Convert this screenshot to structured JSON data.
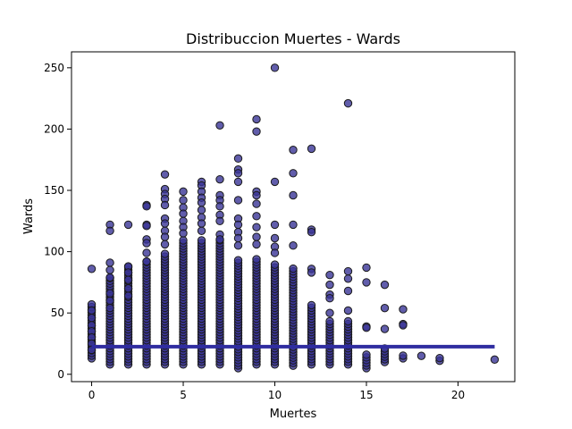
{
  "chart_data": {
    "type": "scatter",
    "title": "Distribuccion Muertes - Wards",
    "xlabel": "Muertes",
    "ylabel": "Wards",
    "xlim": [
      -1.1,
      23.1
    ],
    "ylim": [
      -6,
      263
    ],
    "xticks": [
      0,
      5,
      10,
      15,
      20
    ],
    "yticks": [
      0,
      50,
      100,
      150,
      200,
      250
    ],
    "grid": false,
    "colors": {
      "point": "#3a3596",
      "edge": "#1a1a1a",
      "trend": "#2f2ca0"
    },
    "trend_line": {
      "x": [
        0,
        22
      ],
      "y": [
        22.5,
        22.5
      ]
    },
    "column_ranges": [
      {
        "x": 0,
        "y_min": 13,
        "y_max": 59
      },
      {
        "x": 1,
        "y_min": 8,
        "y_max": 79
      },
      {
        "x": 2,
        "y_min": 8,
        "y_max": 88
      },
      {
        "x": 3,
        "y_min": 8,
        "y_max": 92
      },
      {
        "x": 4,
        "y_min": 8,
        "y_max": 100
      },
      {
        "x": 5,
        "y_min": 8,
        "y_max": 110
      },
      {
        "x": 6,
        "y_min": 8,
        "y_max": 110
      },
      {
        "x": 7,
        "y_min": 8,
        "y_max": 110
      },
      {
        "x": 8,
        "y_min": 5,
        "y_max": 95
      },
      {
        "x": 9,
        "y_min": 8,
        "y_max": 95
      },
      {
        "x": 10,
        "y_min": 8,
        "y_max": 90
      },
      {
        "x": 11,
        "y_min": 7,
        "y_max": 88
      },
      {
        "x": 12,
        "y_min": 8,
        "y_max": 58
      },
      {
        "x": 13,
        "y_min": 8,
        "y_max": 45
      },
      {
        "x": 14,
        "y_min": 8,
        "y_max": 45
      },
      {
        "x": 15,
        "y_min": 5,
        "y_max": 18
      },
      {
        "x": 16,
        "y_min": 10,
        "y_max": 22
      },
      {
        "x": 17,
        "y_min": 13,
        "y_max": 17
      },
      {
        "x": 18,
        "y_min": 15,
        "y_max": 17
      },
      {
        "x": 19,
        "y_min": 11,
        "y_max": 14
      },
      {
        "x": 22,
        "y_min": 12,
        "y_max": 12
      }
    ],
    "points": [
      [
        0,
        86
      ],
      [
        0,
        52
      ],
      [
        0,
        46
      ],
      [
        0,
        40
      ],
      [
        0,
        35
      ],
      [
        0,
        30
      ],
      [
        0,
        25
      ],
      [
        0,
        20
      ],
      [
        1,
        122
      ],
      [
        1,
        117
      ],
      [
        1,
        91
      ],
      [
        1,
        85
      ],
      [
        1,
        79
      ],
      [
        1,
        66
      ],
      [
        1,
        60
      ],
      [
        1,
        54
      ],
      [
        2,
        122
      ],
      [
        2,
        88
      ],
      [
        2,
        83
      ],
      [
        2,
        77
      ],
      [
        2,
        70
      ],
      [
        2,
        64
      ],
      [
        3,
        138
      ],
      [
        3,
        137
      ],
      [
        3,
        122
      ],
      [
        3,
        121
      ],
      [
        3,
        110
      ],
      [
        3,
        107
      ],
      [
        3,
        99
      ],
      [
        3,
        92
      ],
      [
        4,
        163
      ],
      [
        4,
        151
      ],
      [
        4,
        147
      ],
      [
        4,
        143
      ],
      [
        4,
        138
      ],
      [
        4,
        127
      ],
      [
        4,
        123
      ],
      [
        4,
        117
      ],
      [
        4,
        112
      ],
      [
        4,
        106
      ],
      [
        5,
        149
      ],
      [
        5,
        142
      ],
      [
        5,
        136
      ],
      [
        5,
        131
      ],
      [
        5,
        125
      ],
      [
        5,
        120
      ],
      [
        5,
        115
      ],
      [
        6,
        157
      ],
      [
        6,
        154
      ],
      [
        6,
        149
      ],
      [
        6,
        144
      ],
      [
        6,
        140
      ],
      [
        6,
        134
      ],
      [
        6,
        128
      ],
      [
        6,
        123
      ],
      [
        6,
        117
      ],
      [
        7,
        203
      ],
      [
        7,
        159
      ],
      [
        7,
        146
      ],
      [
        7,
        142
      ],
      [
        7,
        137
      ],
      [
        7,
        130
      ],
      [
        7,
        125
      ],
      [
        7,
        114
      ],
      [
        7,
        110
      ],
      [
        8,
        176
      ],
      [
        8,
        167
      ],
      [
        8,
        164
      ],
      [
        8,
        157
      ],
      [
        8,
        142
      ],
      [
        8,
        127
      ],
      [
        8,
        122
      ],
      [
        8,
        116
      ],
      [
        8,
        111
      ],
      [
        8,
        105
      ],
      [
        9,
        208
      ],
      [
        9,
        198
      ],
      [
        9,
        149
      ],
      [
        9,
        146
      ],
      [
        9,
        139
      ],
      [
        9,
        129
      ],
      [
        9,
        120
      ],
      [
        9,
        112
      ],
      [
        9,
        106
      ],
      [
        10,
        250
      ],
      [
        10,
        157
      ],
      [
        10,
        122
      ],
      [
        10,
        111
      ],
      [
        10,
        104
      ],
      [
        10,
        99
      ],
      [
        11,
        183
      ],
      [
        11,
        164
      ],
      [
        11,
        146
      ],
      [
        11,
        122
      ],
      [
        11,
        105
      ],
      [
        12,
        184
      ],
      [
        12,
        118
      ],
      [
        12,
        116
      ],
      [
        12,
        86
      ],
      [
        12,
        83
      ],
      [
        13,
        81
      ],
      [
        13,
        73
      ],
      [
        13,
        65
      ],
      [
        13,
        62
      ],
      [
        13,
        50
      ],
      [
        14,
        221
      ],
      [
        14,
        84
      ],
      [
        14,
        78
      ],
      [
        14,
        68
      ],
      [
        14,
        52
      ],
      [
        15,
        87
      ],
      [
        15,
        75
      ],
      [
        15,
        39
      ],
      [
        15,
        38
      ],
      [
        16,
        73
      ],
      [
        16,
        54
      ],
      [
        16,
        37
      ],
      [
        17,
        53
      ],
      [
        17,
        41
      ],
      [
        17,
        40
      ]
    ]
  }
}
